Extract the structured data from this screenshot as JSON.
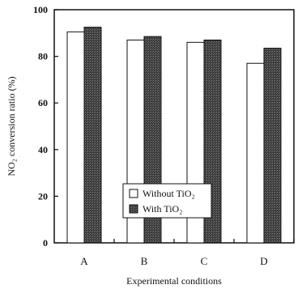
{
  "chart_data": {
    "type": "bar",
    "categories": [
      "A",
      "B",
      "C",
      "D"
    ],
    "series": [
      {
        "name": "Without TiO₂",
        "values": [
          90.5,
          87.0,
          86.0,
          77.0
        ],
        "color": "#ffffff"
      },
      {
        "name": "With TiO₂",
        "values": [
          92.5,
          88.5,
          87.0,
          83.5
        ],
        "color": "#3a3a3a"
      }
    ],
    "xlabel": "Experimental conditions",
    "ylabel": "NO₂ conversion ratio (%)",
    "ylim": [
      0,
      100
    ],
    "yticks": [
      0,
      20,
      40,
      60,
      80,
      100
    ],
    "grid": false,
    "legend_position": "lower-right"
  }
}
